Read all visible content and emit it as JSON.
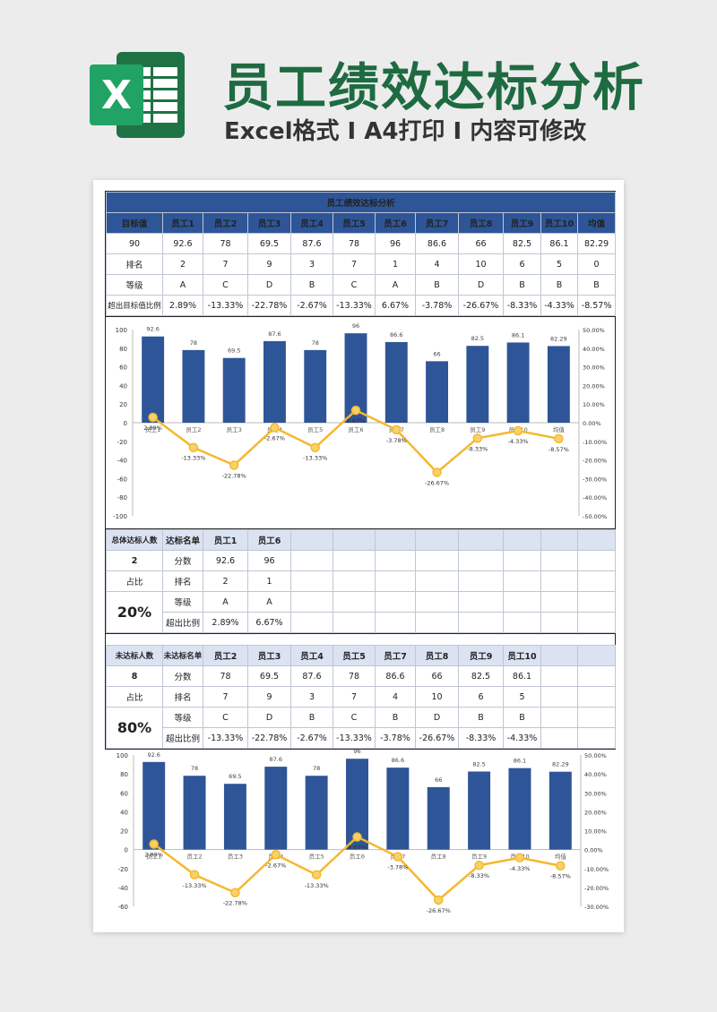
{
  "header": {
    "title": "员工绩效达标分析",
    "subtitle": "Excel格式 I A4打印 I 内容可修改",
    "logo_letter": "X"
  },
  "sheet": {
    "title": "员工绩效达标分析",
    "target_label": "目标值",
    "target_value": "90",
    "row_rank": "排名",
    "row_grade": "等级",
    "row_ratio": "超出目标值比例",
    "avg_label": "均值",
    "columns": [
      {
        "name": "员工1",
        "score": "92.6",
        "rank": "2",
        "grade": "A",
        "ratio": "2.89%"
      },
      {
        "name": "员工2",
        "score": "78",
        "rank": "7",
        "grade": "C",
        "ratio": "-13.33%"
      },
      {
        "name": "员工3",
        "score": "69.5",
        "rank": "9",
        "grade": "D",
        "ratio": "-22.78%"
      },
      {
        "name": "员工4",
        "score": "87.6",
        "rank": "3",
        "grade": "B",
        "ratio": "-2.67%"
      },
      {
        "name": "员工5",
        "score": "78",
        "rank": "7",
        "grade": "C",
        "ratio": "-13.33%"
      },
      {
        "name": "员工6",
        "score": "96",
        "rank": "1",
        "grade": "A",
        "ratio": "6.67%"
      },
      {
        "name": "员工7",
        "score": "86.6",
        "rank": "4",
        "grade": "B",
        "ratio": "-3.78%"
      },
      {
        "name": "员工8",
        "score": "66",
        "rank": "10",
        "grade": "D",
        "ratio": "-26.67%"
      },
      {
        "name": "员工9",
        "score": "82.5",
        "rank": "6",
        "grade": "B",
        "ratio": "-8.33%"
      },
      {
        "name": "员工10",
        "score": "86.1",
        "rank": "5",
        "grade": "B",
        "ratio": "-4.33%"
      }
    ],
    "avg": {
      "score": "82.29",
      "rank": "0",
      "grade": "B",
      "ratio": "-8.57%"
    }
  },
  "pass_section": {
    "count_label": "总体达标人数",
    "list_label": "达标名单",
    "count": "2",
    "share_label": "占比",
    "share": "20%",
    "row_score": "分数",
    "row_rank": "排名",
    "row_grade": "等级",
    "row_ratio": "超出比例",
    "members": [
      {
        "name": "员工1",
        "score": "92.6",
        "rank": "2",
        "grade": "A",
        "ratio": "2.89%"
      },
      {
        "name": "员工6",
        "score": "96",
        "rank": "1",
        "grade": "A",
        "ratio": "6.67%"
      }
    ]
  },
  "fail_section": {
    "count_label": "未达标人数",
    "list_label": "未达标名单",
    "count": "8",
    "share_label": "占比",
    "share": "80%",
    "row_score": "分数",
    "row_rank": "排名",
    "row_grade": "等级",
    "row_ratio": "超出比例",
    "members": [
      {
        "name": "员工2",
        "score": "78",
        "rank": "7",
        "grade": "C",
        "ratio": "-13.33%"
      },
      {
        "name": "员工3",
        "score": "69.5",
        "rank": "9",
        "grade": "D",
        "ratio": "-22.78%"
      },
      {
        "name": "员工4",
        "score": "87.6",
        "rank": "3",
        "grade": "B",
        "ratio": "-2.67%"
      },
      {
        "name": "员工5",
        "score": "78",
        "rank": "7",
        "grade": "C",
        "ratio": "-13.33%"
      },
      {
        "name": "员工7",
        "score": "86.6",
        "rank": "4",
        "grade": "B",
        "ratio": "-3.78%"
      },
      {
        "name": "员工8",
        "score": "66",
        "rank": "10",
        "grade": "D",
        "ratio": "-26.67%"
      },
      {
        "name": "员工9",
        "score": "82.5",
        "rank": "6",
        "grade": "B",
        "ratio": "-8.33%"
      },
      {
        "name": "员工10",
        "score": "86.1",
        "rank": "5",
        "grade": "B",
        "ratio": "-4.33%"
      }
    ]
  },
  "colors": {
    "bar": "#2e5597",
    "line": "#f5b82e",
    "header_bg": "#2e5597",
    "light_header_bg": "#dbe3f3",
    "brand_green": "#1e6b41"
  },
  "chart_data": [
    {
      "type": "bar",
      "categories": [
        "员工1",
        "员工2",
        "员工3",
        "员工4",
        "员工5",
        "员工6",
        "员工7",
        "员工8",
        "员工9",
        "员工10",
        "均值"
      ],
      "series": [
        {
          "values": [
            92.6,
            78,
            69.5,
            87.6,
            78,
            96,
            86.6,
            66,
            82.5,
            86.1,
            82.29
          ],
          "axis": "left"
        },
        {
          "type": "line",
          "values": [
            2.89,
            -13.33,
            -22.78,
            -2.67,
            -13.33,
            6.67,
            -3.78,
            -26.67,
            -8.33,
            -4.33,
            -8.57
          ],
          "axis": "right"
        }
      ],
      "bar_labels": [
        "92.6",
        "78",
        "69.5",
        "87.6",
        "78",
        "96",
        "86.6",
        "66",
        "82.5",
        "86.1",
        "82.29"
      ],
      "line_labels": [
        "2.89%",
        "-13.33%",
        "-22.78%",
        "-2.67%",
        "-13.33%",
        "6.67%",
        "-3.78%",
        "-26.67%",
        "-8.33%",
        "-4.33%",
        "-8.57%"
      ],
      "ylim": [
        -100,
        100
      ],
      "yticks": [
        "100",
        "80",
        "60",
        "40",
        "20",
        "0",
        "-20",
        "-40",
        "-60",
        "-80",
        "-100"
      ],
      "y2lim": [
        -50,
        50
      ],
      "y2ticks": [
        "50.00%",
        "40.00%",
        "30.00%",
        "20.00%",
        "10.00%",
        "0.00%",
        "-10.00%",
        "-20.00%",
        "-30.00%",
        "-40.00%",
        "-50.00%"
      ],
      "grid": false,
      "legend": "none"
    },
    {
      "type": "bar",
      "categories": [
        "员工1",
        "员工2",
        "员工3",
        "员工4",
        "员工5",
        "员工6",
        "员工7",
        "员工8",
        "员工9",
        "员工10",
        "均值"
      ],
      "series": [
        {
          "values": [
            92.6,
            78,
            69.5,
            87.6,
            78,
            96,
            86.6,
            66,
            82.5,
            86.1,
            82.29
          ],
          "axis": "left"
        },
        {
          "type": "line",
          "values": [
            2.89,
            -13.33,
            -22.78,
            -2.67,
            -13.33,
            6.67,
            -3.78,
            -26.67,
            -8.33,
            -4.33,
            -8.57
          ],
          "axis": "right"
        }
      ],
      "bar_labels": [
        "92.6",
        "78",
        "69.5",
        "87.6",
        "78",
        "96",
        "86.6",
        "66",
        "82.5",
        "86.1",
        "82.29"
      ],
      "line_labels": [
        "2.89%",
        "-13.33%",
        "-22.78%",
        "-2.67%",
        "-13.33%",
        "6.67%",
        "-3.78%",
        "-26.67%",
        "-8.33%",
        "-4.33%",
        "-8.57%"
      ],
      "ylim": [
        -60,
        100
      ],
      "yticks": [
        "100",
        "80",
        "60",
        "40",
        "20",
        "0",
        "-20",
        "-40",
        "-60"
      ],
      "y2lim": [
        -30,
        50
      ],
      "y2ticks": [
        "50.00%",
        "40.00%",
        "30.00%",
        "20.00%",
        "10.00%",
        "0.00%",
        "-10.00%",
        "-20.00%",
        "-30.00%"
      ],
      "grid": false,
      "legend": "none"
    }
  ]
}
